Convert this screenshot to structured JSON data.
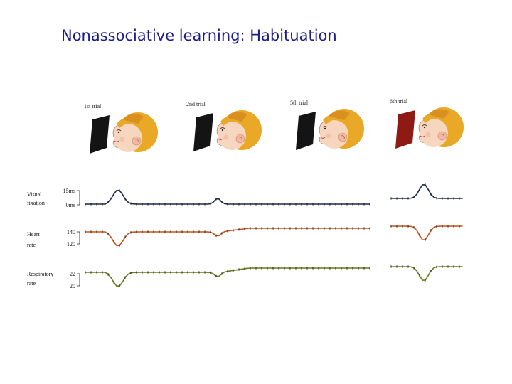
{
  "slide": {
    "title": "Nonassociative learning: Habituation"
  },
  "trials": [
    {
      "label": "1st trial",
      "stimulus_color": "#141414"
    },
    {
      "label": "2nd trial",
      "stimulus_color": "#141414"
    },
    {
      "label": "5th trial",
      "stimulus_color": "#141414"
    },
    {
      "label": "6th trial",
      "stimulus_color": "#8e1a14"
    }
  ],
  "measures": [
    {
      "label_line1": "Visual",
      "label_line2": "fixation",
      "scale_high": "15ms",
      "scale_low": "0ms",
      "color": "#1c2b45"
    },
    {
      "label_line1": "Heart",
      "label_line2": "rate",
      "scale_high": "140",
      "scale_low": "120",
      "color": "#c8551e"
    },
    {
      "label_line1": "Respiratory",
      "label_line2": "rate",
      "scale_high": "22",
      "scale_low": "20",
      "color": "#6b7a1c"
    }
  ],
  "colors": {
    "title": "#1d1d8a",
    "hair": "#e9a826",
    "skin": "#f6d6bf",
    "cheek": "#f2b8a2"
  }
}
